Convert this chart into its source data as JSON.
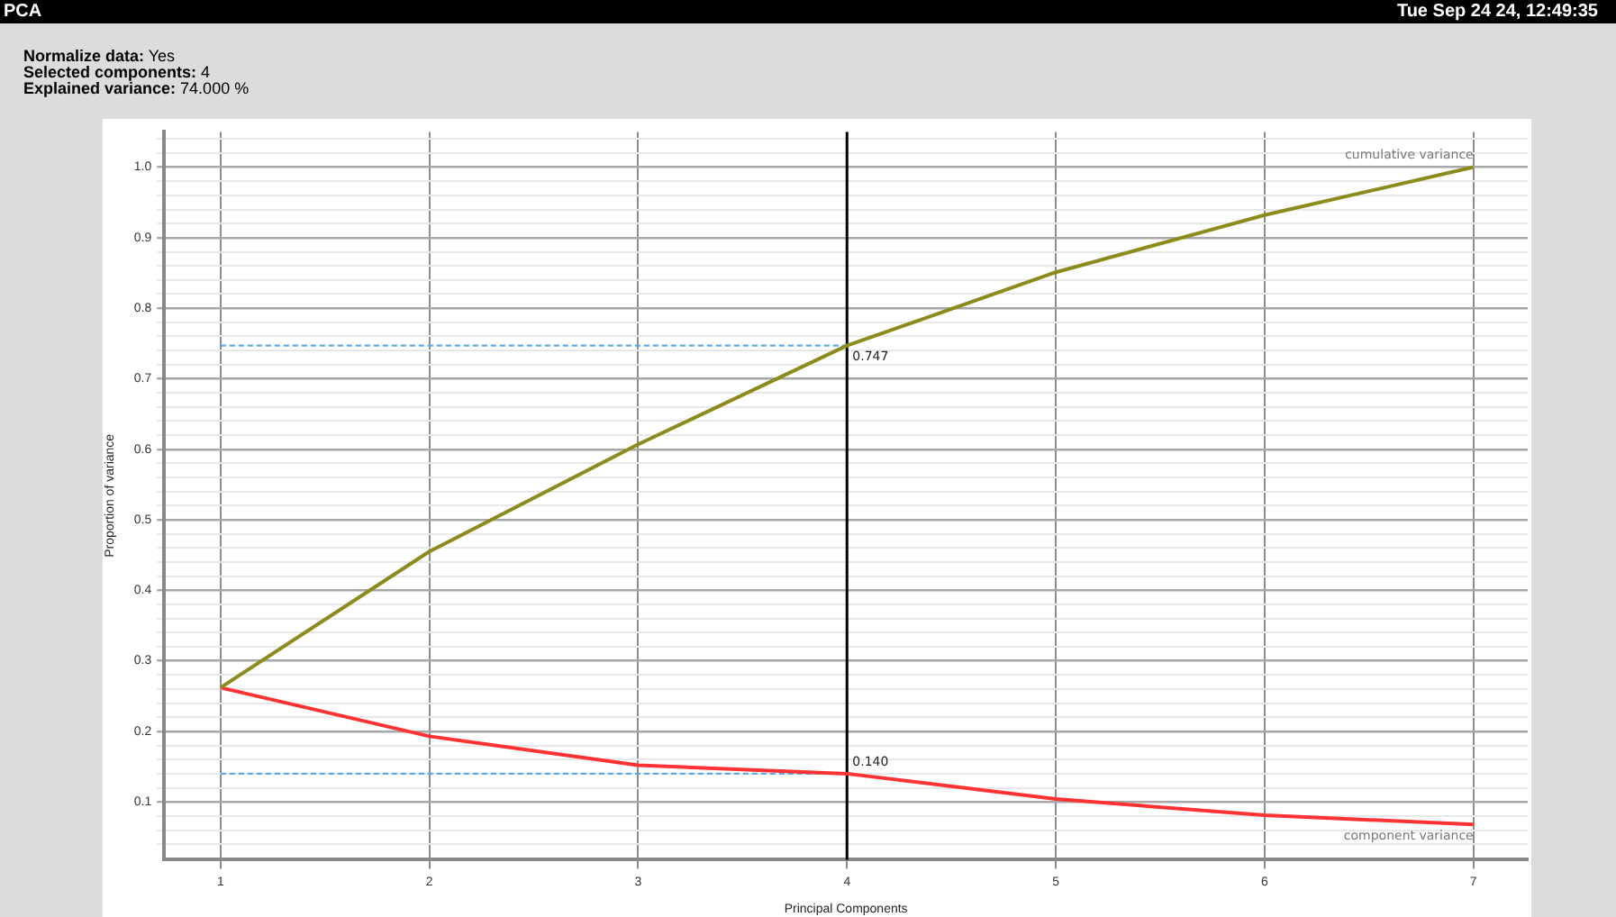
{
  "chart_data": {
    "type": "line",
    "title": "PCA",
    "xlabel": "Principal Components",
    "ylabel": "Proportion of variance",
    "annotations": [
      "Tue Sep 24 24, 12:49:35",
      "Normalize data: Yes",
      "Selected components: 4",
      "Explained variance: 74.000 %",
      {
        "text": "0.747",
        "x": 4,
        "y": 0.747
      },
      {
        "text": "0.140",
        "x": 4,
        "y": 0.14
      }
    ],
    "x": [
      1,
      2,
      3,
      4,
      5,
      6,
      7
    ],
    "series": [
      {
        "name": "cumulative variance",
        "color": "#8c8c1e",
        "values": [
          0.262,
          0.455,
          0.607,
          0.747,
          0.851,
          0.932,
          1.0
        ]
      },
      {
        "name": "component variance",
        "color": "#ff3333",
        "values": [
          0.262,
          0.193,
          0.152,
          0.14,
          0.104,
          0.081,
          0.068
        ]
      }
    ],
    "xlim": [
      0.73,
      7.26
    ],
    "xticks": [
      1,
      2,
      3,
      4,
      5,
      6,
      7
    ],
    "ylim": [
      0.018,
      1.05
    ],
    "yticks": [
      {
        "value": 0.04,
        "label": null
      },
      {
        "value": 0.06,
        "label": null
      },
      {
        "value": 0.08,
        "label": null
      },
      {
        "value": 0.1,
        "label": "0.1"
      },
      {
        "value": 0.12,
        "label": null
      },
      {
        "value": 0.14,
        "label": null
      },
      {
        "value": 0.16,
        "label": null
      },
      {
        "value": 0.18,
        "label": null
      },
      {
        "value": 0.2,
        "label": "0.2"
      },
      {
        "value": 0.22,
        "label": null
      },
      {
        "value": 0.24,
        "label": null
      },
      {
        "value": 0.26,
        "label": null
      },
      {
        "value": 0.28,
        "label": null
      },
      {
        "value": 0.3,
        "label": "0.3"
      },
      {
        "value": 0.32,
        "label": null
      },
      {
        "value": 0.34,
        "label": null
      },
      {
        "value": 0.36,
        "label": null
      },
      {
        "value": 0.38,
        "label": null
      },
      {
        "value": 0.4,
        "label": "0.4"
      },
      {
        "value": 0.42,
        "label": null
      },
      {
        "value": 0.44,
        "label": null
      },
      {
        "value": 0.46,
        "label": null
      },
      {
        "value": 0.48,
        "label": null
      },
      {
        "value": 0.5,
        "label": "0.5"
      },
      {
        "value": 0.52,
        "label": null
      },
      {
        "value": 0.54,
        "label": null
      },
      {
        "value": 0.56,
        "label": null
      },
      {
        "value": 0.58,
        "label": null
      },
      {
        "value": 0.6,
        "label": "0.6"
      },
      {
        "value": 0.62,
        "label": null
      },
      {
        "value": 0.64,
        "label": null
      },
      {
        "value": 0.66,
        "label": null
      },
      {
        "value": 0.68,
        "label": null
      },
      {
        "value": 0.7,
        "label": "0.7"
      },
      {
        "value": 0.72,
        "label": null
      },
      {
        "value": 0.74,
        "label": null
      },
      {
        "value": 0.76,
        "label": null
      },
      {
        "value": 0.78,
        "label": null
      },
      {
        "value": 0.8,
        "label": "0.8"
      },
      {
        "value": 0.82,
        "label": null
      },
      {
        "value": 0.84,
        "label": null
      },
      {
        "value": 0.86,
        "label": null
      },
      {
        "value": 0.88,
        "label": null
      },
      {
        "value": 0.9,
        "label": "0.9"
      },
      {
        "value": 0.92,
        "label": null
      },
      {
        "value": 0.94,
        "label": null
      },
      {
        "value": 0.96,
        "label": null
      },
      {
        "value": 0.98,
        "label": null
      },
      {
        "value": 1.0,
        "label": "1.0"
      },
      {
        "value": 1.02,
        "label": null
      },
      {
        "value": 1.04,
        "label": null
      }
    ],
    "ref_lines": [
      {
        "axis": "x",
        "value": 4,
        "color": "#000000",
        "line_style": "solid"
      },
      {
        "axis": "y",
        "value": 0.747,
        "color": "#5aaae6",
        "line_style": "dashed"
      },
      {
        "axis": "y",
        "value": 0.14,
        "color": "#5aaae6",
        "line_style": "dashed"
      }
    ],
    "grid": true,
    "legend": false,
    "marker": "none",
    "line_style": "solid"
  }
}
